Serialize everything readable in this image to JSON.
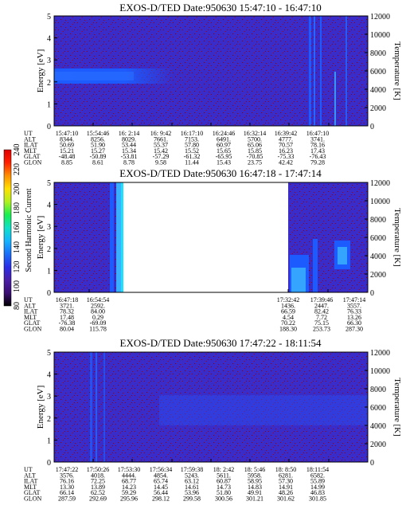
{
  "colors": {
    "background_blue": "#3a2cc8",
    "speckle_red": "#a00000",
    "band_blue": "#1c5cff",
    "band_light": "#38b0ff",
    "gap": "#ffffff"
  },
  "colorbar": {
    "label": "Second Harmonic Current",
    "ticks": [
      "240",
      "220",
      "200",
      "180",
      "160",
      "140",
      "120",
      "100",
      "80"
    ],
    "range": [
      80,
      240
    ],
    "stops": [
      "#000000",
      "#3a0e73",
      "#4a1ea8",
      "#2a2ee8",
      "#1a6ff8",
      "#14b4ff",
      "#10e0c8",
      "#18f050",
      "#b0f020",
      "#ffe000",
      "#ff9000",
      "#ff2000",
      "#e00000"
    ]
  },
  "chart_data": [
    {
      "type": "heatmap",
      "title": "EXOS-D/TED   Date:950630   15:47:10 - 16:47:10",
      "ylabel": "Energy [eV]",
      "y2label": "Temperature [K]",
      "ylim": [
        0,
        5
      ],
      "y2lim": [
        0,
        12000
      ],
      "yticks": [
        "5",
        "4",
        "3",
        "2",
        "1",
        "0"
      ],
      "y2ticks": [
        "12000",
        "10000",
        "8000",
        "6000",
        "4000",
        "2000",
        "0"
      ],
      "ephemeris": {
        "labels": [
          "UT",
          "ALT",
          "ILAT",
          "MLT",
          "GLAT",
          "GLON"
        ],
        "columns": [
          [
            "15:47:10",
            "8344.",
            "50.69",
            "15.21",
            "-48.48",
            "8.85"
          ],
          [
            "15:54:46",
            "8256.",
            "51.90",
            "15.27",
            "-50.89",
            "8.61"
          ],
          [
            "16: 2:14",
            "8029.",
            "53.44",
            "15.34",
            "-53.81",
            "8.78"
          ],
          [
            "16: 9:42",
            "7661.",
            "55.37",
            "15.42",
            "-57.29",
            "9.58"
          ],
          [
            "16:17:10",
            "7153.",
            "57.80",
            "15.52",
            "-61.32",
            "11.44"
          ],
          [
            "16:24:46",
            "6491.",
            "60.97",
            "15.65",
            "-65.95",
            "15.43"
          ],
          [
            "16:32:14",
            "5700.",
            "65.06",
            "15.85",
            "-70.85",
            "23.75"
          ],
          [
            "16:39:42",
            "4777.",
            "70.57",
            "16.23",
            "-75.33",
            "42.42"
          ],
          [
            "16:47:10",
            "3741.",
            "78.16",
            "17.43",
            "-76.43",
            "79.28"
          ]
        ]
      }
    },
    {
      "type": "heatmap",
      "title": "EXOS-D/TED   Date:950630   16:47:18 - 17:47:14",
      "ylabel": "Energy [eV]",
      "y2label": "Temperature [K]",
      "ylim": [
        0,
        5
      ],
      "y2lim": [
        0,
        12000
      ],
      "yticks": [
        "5",
        "4",
        "3",
        "2",
        "1",
        "0"
      ],
      "y2ticks": [
        "12000",
        "10000",
        "8000",
        "6000",
        "4000",
        "2000",
        "0"
      ],
      "data_gap": [
        "16:54:54",
        "17:32:42"
      ],
      "ephemeris": {
        "labels": [
          "UT",
          "ALT",
          "ILAT",
          "MLT",
          "GLAT",
          "GLON"
        ],
        "columns": [
          [
            "16:47:18",
            "3721.",
            "78.32",
            "17.48",
            "-76.38",
            "80.04"
          ],
          [
            "16:54:54",
            "2592.",
            "84.00",
            "0.29",
            "-69.09",
            "115.78"
          ],
          [
            "17:32:42",
            "1436.",
            "66.59",
            "4.54",
            "70.22",
            "188.30"
          ],
          [
            "17:39:46",
            "2447.",
            "82.42",
            "7.72",
            "75.15",
            "253.73"
          ],
          [
            "17:47:14",
            "3557.",
            "76.33",
            "13.26",
            "66.30",
            "287.30"
          ]
        ]
      }
    },
    {
      "type": "heatmap",
      "title": "EXOS-D/TED   Date:950630   17:47:22 - 18:11:54",
      "ylabel": "Energy [eV]",
      "y2label": "Temperature [K]",
      "ylim": [
        0,
        5
      ],
      "y2lim": [
        0,
        12000
      ],
      "yticks": [
        "5",
        "4",
        "3",
        "2",
        "1",
        "0"
      ],
      "y2ticks": [
        "12000",
        "10000",
        "8000",
        "6000",
        "4000",
        "2000",
        "0"
      ],
      "ephemeris": {
        "labels": [
          "UT",
          "ALT",
          "ILAT",
          "MLT",
          "GLAT",
          "GLON"
        ],
        "columns": [
          [
            "17:47:22",
            "3576.",
            "76.16",
            "13.30",
            "66.14",
            "287.59"
          ],
          [
            "17:50:26",
            "4018.",
            "72.25",
            "13.89",
            "62.52",
            "292.69"
          ],
          [
            "17:53:30",
            "4444.",
            "68.77",
            "14.23",
            "59.29",
            "295.96"
          ],
          [
            "17:56:34",
            "4854.",
            "65.74",
            "14.45",
            "56.44",
            "298.12"
          ],
          [
            "17:59:38",
            "5243.",
            "63.12",
            "14.61",
            "53.96",
            "299.58"
          ],
          [
            "18: 2:42",
            "5611.",
            "60.87",
            "14.73",
            "51.80",
            "300.56"
          ],
          [
            "18: 5:46",
            "5958.",
            "58.95",
            "14.83",
            "49.91",
            "301.21"
          ],
          [
            "18: 8:50",
            "6281.",
            "57.30",
            "14.91",
            "48.26",
            "301.62"
          ],
          [
            "18:11:54",
            "6582.",
            "55.89",
            "14.99",
            "46.83",
            "301.85"
          ]
        ]
      }
    }
  ]
}
